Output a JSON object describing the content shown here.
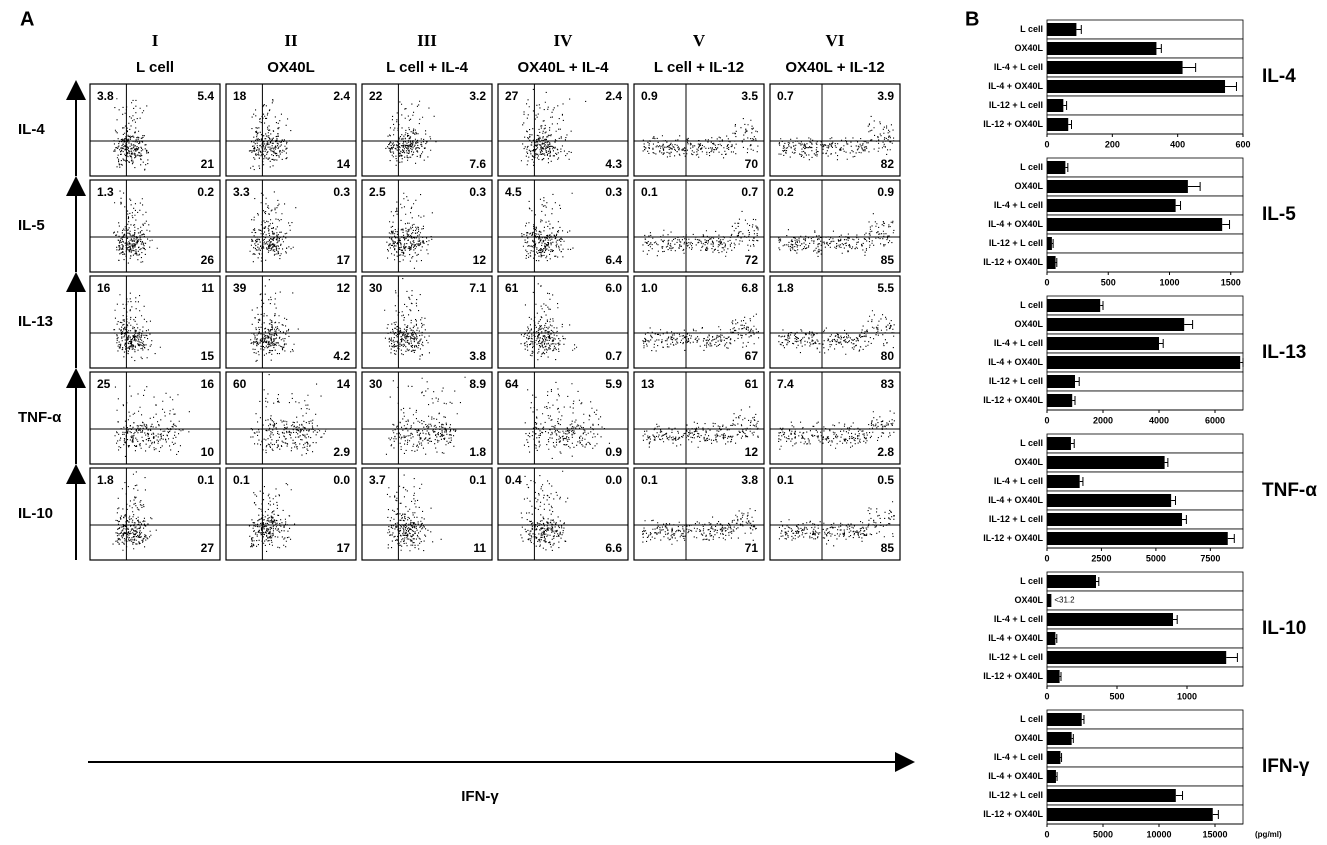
{
  "panel_a": {
    "label": "A",
    "x_label": "IFN-γ",
    "columns": [
      {
        "numeral": "I",
        "title": "L cell"
      },
      {
        "numeral": "II",
        "title": "OX40L"
      },
      {
        "numeral": "III",
        "title": "L cell + IL-4"
      },
      {
        "numeral": "IV",
        "title": "OX40L + IL-4"
      },
      {
        "numeral": "V",
        "title": "L cell + IL-12"
      },
      {
        "numeral": "VI",
        "title": "OX40L + IL-12"
      }
    ],
    "rows": [
      {
        "label": "IL-4",
        "quadrants": [
          [
            "3.8",
            "5.4",
            "21"
          ],
          [
            "18",
            "2.4",
            "14"
          ],
          [
            "22",
            "3.2",
            "7.6"
          ],
          [
            "27",
            "2.4",
            "4.3"
          ],
          [
            "0.9",
            "3.5",
            "70"
          ],
          [
            "0.7",
            "3.9",
            "82"
          ]
        ]
      },
      {
        "label": "IL-5",
        "quadrants": [
          [
            "1.3",
            "0.2",
            "26"
          ],
          [
            "3.3",
            "0.3",
            "17"
          ],
          [
            "2.5",
            "0.3",
            "12"
          ],
          [
            "4.5",
            "0.3",
            "6.4"
          ],
          [
            "0.1",
            "0.7",
            "72"
          ],
          [
            "0.2",
            "0.9",
            "85"
          ]
        ]
      },
      {
        "label": "IL-13",
        "quadrants": [
          [
            "16",
            "11",
            "15"
          ],
          [
            "39",
            "12",
            "4.2"
          ],
          [
            "30",
            "7.1",
            "3.8"
          ],
          [
            "61",
            "6.0",
            "0.7"
          ],
          [
            "1.0",
            "6.8",
            "67"
          ],
          [
            "1.8",
            "5.5",
            "80"
          ]
        ]
      },
      {
        "label": "TNF-α",
        "quadrants": [
          [
            "25",
            "16",
            "10"
          ],
          [
            "60",
            "14",
            "2.9"
          ],
          [
            "30",
            "8.9",
            "1.8"
          ],
          [
            "64",
            "5.9",
            "0.9"
          ],
          [
            "13",
            "61",
            "12"
          ],
          [
            "7.4",
            "83",
            "2.8"
          ]
        ]
      },
      {
        "label": "IL-10",
        "quadrants": [
          [
            "1.8",
            "0.1",
            "27"
          ],
          [
            "0.1",
            "0.0",
            "17"
          ],
          [
            "3.7",
            "0.1",
            "11"
          ],
          [
            "0.4",
            "0.0",
            "6.6"
          ],
          [
            "0.1",
            "3.8",
            "71"
          ],
          [
            "0.1",
            "0.5",
            "85"
          ]
        ]
      }
    ]
  },
  "panel_b": {
    "label": "B"
  },
  "chart_data": [
    {
      "type": "bar",
      "title": "IL-4",
      "color": "#000000",
      "categories": [
        "L cell",
        "OX40L",
        "IL-4 + L cell",
        "IL-4 + OX40L",
        "IL-12 + L cell",
        "IL-12 + OX40L"
      ],
      "values": [
        90,
        335,
        415,
        545,
        50,
        65
      ],
      "errors": [
        15,
        15,
        40,
        35,
        10,
        10
      ],
      "xlim": [
        0,
        600
      ],
      "xticks": [
        0,
        200,
        400,
        600
      ]
    },
    {
      "type": "bar",
      "title": "IL-5",
      "color": "#000000",
      "categories": [
        "L cell",
        "OX40L",
        "IL-4 + L cell",
        "IL-4 + OX40L",
        "IL-12 + L cell",
        "IL-12 + OX40L"
      ],
      "values": [
        150,
        1150,
        1050,
        1430,
        40,
        70
      ],
      "errors": [
        20,
        100,
        40,
        60,
        10,
        10
      ],
      "xlim": [
        0,
        1600
      ],
      "xticks": [
        0,
        500,
        1000,
        1500
      ]
    },
    {
      "type": "bar",
      "title": "IL-13",
      "color": "#000000",
      "categories": [
        "L cell",
        "OX40L",
        "IL-4 + L cell",
        "IL-4 + OX40L",
        "IL-12 + L cell",
        "IL-12 + OX40L"
      ],
      "values": [
        1900,
        4900,
        4000,
        6900,
        1000,
        900
      ],
      "errors": [
        100,
        300,
        150,
        100,
        150,
        100
      ],
      "xlim": [
        0,
        7000
      ],
      "xticks": [
        0,
        2000,
        4000,
        6000
      ]
    },
    {
      "type": "bar",
      "title": "TNF-α",
      "color": "#000000",
      "categories": [
        "L cell",
        "OX40L",
        "IL-4 + L cell",
        "IL-4 + OX40L",
        "IL-12 + L cell",
        "IL-12 + OX40L"
      ],
      "values": [
        1100,
        5400,
        1500,
        5700,
        6200,
        8300
      ],
      "errors": [
        150,
        150,
        150,
        200,
        200,
        300
      ],
      "xlim": [
        0,
        9000
      ],
      "xticks": [
        0,
        2500,
        5000,
        7500
      ]
    },
    {
      "type": "bar",
      "title": "IL-10",
      "color": "#000000",
      "categories": [
        "L cell",
        "OX40L",
        "IL-4 + L cell",
        "IL-4 + OX40L",
        "IL-12 + L cell",
        "IL-12 + OX40L"
      ],
      "values": [
        350,
        31.2,
        900,
        60,
        1280,
        90
      ],
      "value_labels": [
        null,
        "<31.2",
        null,
        null,
        null,
        null
      ],
      "errors": [
        20,
        0,
        30,
        10,
        80,
        10
      ],
      "xlim": [
        0,
        1400
      ],
      "xticks": [
        0,
        500,
        1000
      ]
    },
    {
      "type": "bar",
      "title": "IFN-γ",
      "x_label": "(pg/ml)",
      "color": "#000000",
      "categories": [
        "L cell",
        "OX40L",
        "IL-4 + L cell",
        "IL-4 + OX40L",
        "IL-12 + L cell",
        "IL-12 + OX40L"
      ],
      "values": [
        3100,
        2200,
        1200,
        800,
        11500,
        14800
      ],
      "errors": [
        200,
        150,
        100,
        100,
        600,
        500
      ],
      "xlim": [
        0,
        17500
      ],
      "xticks": [
        0,
        5000,
        10000,
        15000
      ]
    }
  ]
}
